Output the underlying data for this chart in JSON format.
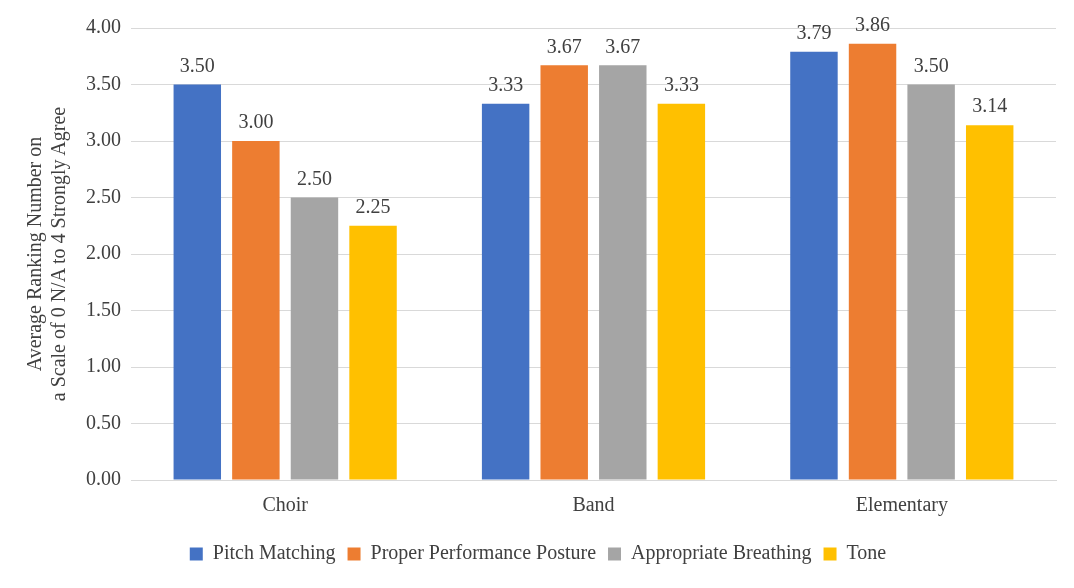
{
  "chart_data": {
    "type": "bar",
    "ylabel": "Average Ranking Number on\na Scale of 0 N/A to 4 Strongly Agree",
    "categories": [
      "Choir",
      "Band",
      "Elementary"
    ],
    "series": [
      {
        "name": "Pitch Matching",
        "color": "#4472c4",
        "values": [
          3.5,
          3.33,
          3.79
        ],
        "value_labels": [
          "3.50",
          "3.33",
          "3.79"
        ]
      },
      {
        "name": "Proper Performance Posture",
        "color": "#ed7d31",
        "values": [
          3.0,
          3.67,
          3.86
        ],
        "value_labels": [
          "3.00",
          "3.67",
          "3.86"
        ]
      },
      {
        "name": "Appropriate Breathing",
        "color": "#a5a5a5",
        "values": [
          2.5,
          3.67,
          3.5
        ],
        "value_labels": [
          "2.50",
          "3.67",
          "3.50"
        ]
      },
      {
        "name": "Tone",
        "color": "#ffc000",
        "values": [
          2.25,
          3.33,
          3.14
        ],
        "value_labels": [
          "2.25",
          "3.33",
          "3.14"
        ]
      }
    ],
    "ylim": [
      0,
      4
    ],
    "yticks": [
      {
        "value": 0,
        "label": "0.00"
      },
      {
        "value": 0.5,
        "label": "0.50"
      },
      {
        "value": 1,
        "label": "1.00"
      },
      {
        "value": 1.5,
        "label": "1.50"
      },
      {
        "value": 2,
        "label": "2.00"
      },
      {
        "value": 2.5,
        "label": "2.50"
      },
      {
        "value": 3,
        "label": "3.00"
      },
      {
        "value": 3.5,
        "label": "3.50"
      },
      {
        "value": 4,
        "label": "4.00"
      }
    ],
    "grid": "y",
    "legend": "bottom"
  }
}
